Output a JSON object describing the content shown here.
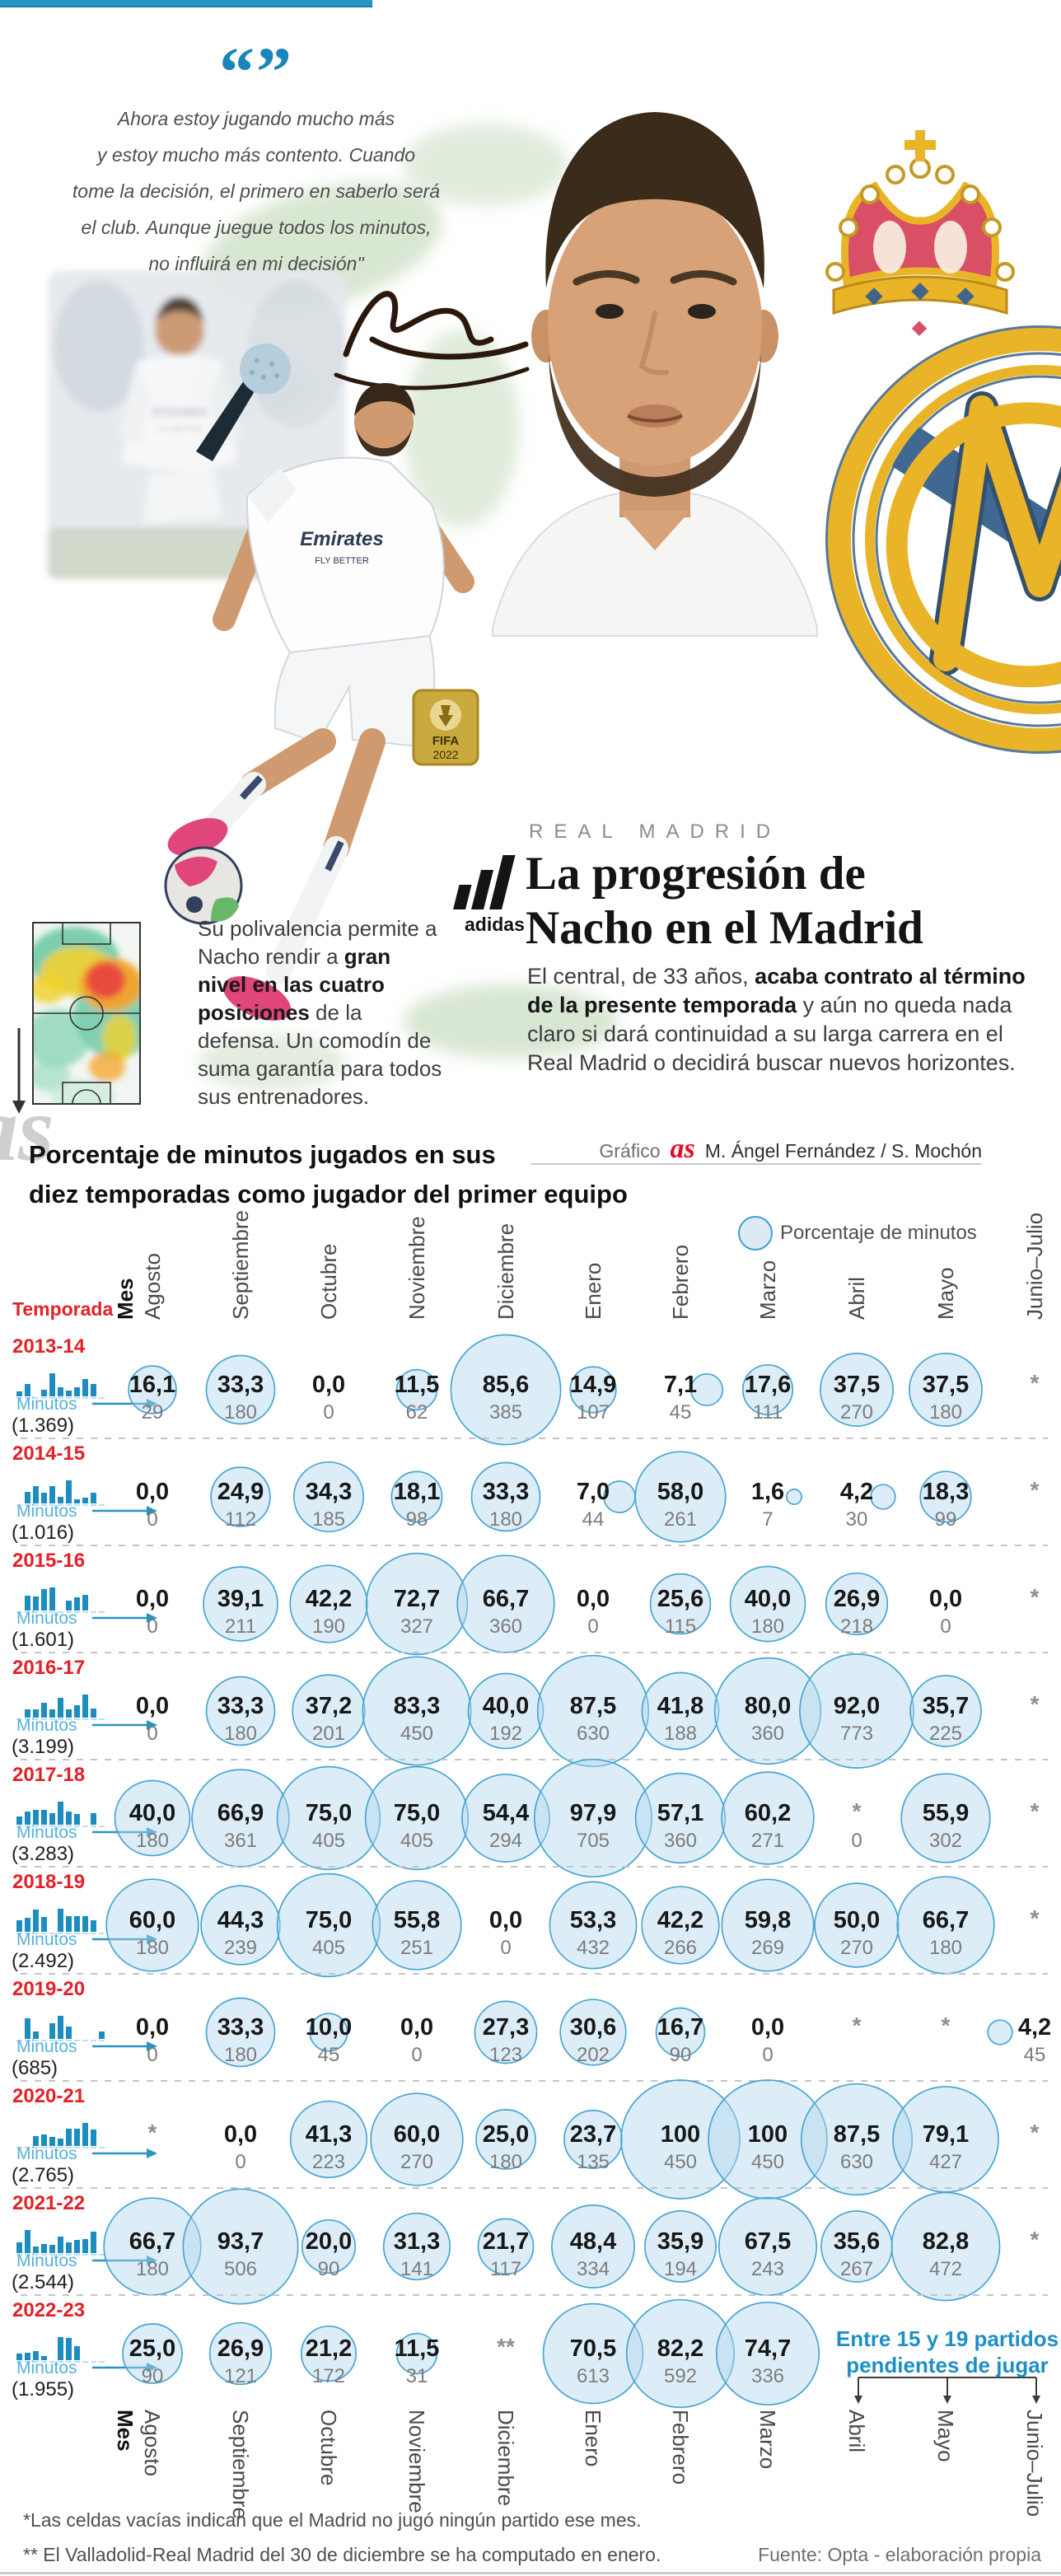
{
  "quote": {
    "glyphs": "“”",
    "lines": [
      "Ahora estoy jugando mucho más",
      "y estoy mucho más contento. Cuando",
      "tome la decisión, el primero en saberlo será",
      "el club. Aunque juegue todos los minutos,",
      "no influirá en mi decisión\""
    ]
  },
  "header": {
    "kicker": "REAL MADRID",
    "title_lines": [
      "La progresión de",
      "Nacho en el Madrid"
    ],
    "intro_segments": [
      {
        "text": "El central, de 33 años, ",
        "bold": false
      },
      {
        "text": "acaba contrato al término de la presente temporada",
        "bold": true
      },
      {
        "text": " y aún no queda nada claro si dará continuidad a su larga carrera en el Real Madrid o decidirá buscar nuevos horizontes.",
        "bold": false
      }
    ]
  },
  "heatmap_note_segments": [
    {
      "text": "Su polivalencia permite a Nacho rendir a ",
      "bold": false
    },
    {
      "text": "gran nivel en las cuatro posiciones",
      "bold": true
    },
    {
      "text": " de la defensa. Un comodín de suma garantía para todos sus entrenadores.",
      "bold": false
    }
  ],
  "section": {
    "title_lines": [
      "Porcentaje de minutos jugados en sus",
      "diez temporadas como jugador del primer equipo"
    ],
    "credit_label": "Gráfico",
    "credit_logo": "as",
    "credit_authors": "M. Ángel Fernández / S. Mochón",
    "legend_label": "Porcentaje de minutos"
  },
  "artwork": {
    "jersey_sponsor": "Emirates",
    "jersey_tagline": "FLY BETTER",
    "adidas_label": "adidas",
    "fifa_label": "FIFA",
    "fifa_year": "2022"
  },
  "chart_data": {
    "type": "bubble-matrix",
    "title": "Porcentaje de minutos jugados en sus diez temporadas como jugador del primer equipo",
    "row_axis_label": "Temporada",
    "col_axis_label": "Mes",
    "legend": "Porcentaje de minutos",
    "unit_row_label": "Minutos",
    "columns": [
      "Agosto",
      "Septiembre",
      "Octubre",
      "Noviembre",
      "Diciembre",
      "Enero",
      "Febrero",
      "Marzo",
      "Abril",
      "Mayo",
      "Junio–Julio"
    ],
    "rows": [
      {
        "season": "2013-14",
        "total_label": "(1.369)",
        "pct": [
          16.1,
          33.3,
          0,
          11.5,
          85.6,
          14.9,
          7.1,
          17.6,
          37.5,
          37.5,
          null
        ],
        "minutes": [
          29,
          180,
          0,
          62,
          385,
          107,
          45,
          111,
          270,
          180,
          null
        ],
        "notes": [
          null,
          null,
          null,
          null,
          null,
          null,
          null,
          null,
          null,
          null,
          "*"
        ]
      },
      {
        "season": "2014-15",
        "total_label": "(1.016)",
        "pct": [
          0,
          24.9,
          34.3,
          18.1,
          33.3,
          7,
          58,
          1.6,
          4.2,
          18.3,
          null
        ],
        "minutes": [
          0,
          112,
          185,
          98,
          180,
          44,
          261,
          7,
          30,
          99,
          null
        ],
        "notes": [
          null,
          null,
          null,
          null,
          null,
          null,
          null,
          null,
          null,
          null,
          "*"
        ]
      },
      {
        "season": "2015-16",
        "total_label": "(1.601)",
        "pct": [
          0,
          39.1,
          42.2,
          72.7,
          66.7,
          0,
          25.6,
          40,
          26.9,
          0,
          null
        ],
        "minutes": [
          0,
          211,
          190,
          327,
          360,
          0,
          115,
          180,
          218,
          0,
          null
        ],
        "notes": [
          null,
          null,
          null,
          null,
          null,
          null,
          null,
          null,
          null,
          null,
          "*"
        ]
      },
      {
        "season": "2016-17",
        "total_label": "(3.199)",
        "pct": [
          0,
          33.3,
          37.2,
          83.3,
          40,
          87.5,
          41.8,
          80,
          92,
          35.7,
          null
        ],
        "minutes": [
          0,
          180,
          201,
          450,
          192,
          630,
          188,
          360,
          773,
          225,
          null
        ],
        "notes": [
          null,
          null,
          null,
          null,
          null,
          null,
          null,
          null,
          null,
          null,
          "*"
        ]
      },
      {
        "season": "2017-18",
        "total_label": "(3.283)",
        "pct": [
          40,
          66.9,
          75,
          75,
          54.4,
          97.9,
          57.1,
          60.2,
          null,
          55.9,
          null
        ],
        "minutes": [
          180,
          361,
          405,
          405,
          294,
          705,
          360,
          271,
          0,
          302,
          null
        ],
        "notes": [
          null,
          null,
          null,
          null,
          null,
          null,
          null,
          null,
          "*",
          null,
          "*"
        ]
      },
      {
        "season": "2018-19",
        "total_label": "(2.492)",
        "pct": [
          60,
          44.3,
          75,
          55.8,
          0,
          53.3,
          42.2,
          59.8,
          50,
          66.7,
          null
        ],
        "minutes": [
          180,
          239,
          405,
          251,
          0,
          432,
          266,
          269,
          270,
          180,
          null
        ],
        "notes": [
          null,
          null,
          null,
          null,
          null,
          null,
          null,
          null,
          null,
          null,
          "*"
        ]
      },
      {
        "season": "2019-20",
        "total_label": "(685)",
        "pct": [
          0,
          33.3,
          10,
          0,
          27.3,
          30.6,
          16.7,
          0,
          null,
          null,
          4.2
        ],
        "minutes": [
          0,
          180,
          45,
          0,
          123,
          202,
          90,
          0,
          null,
          null,
          45
        ],
        "notes": [
          null,
          null,
          null,
          null,
          null,
          null,
          null,
          null,
          "*",
          "*",
          null
        ]
      },
      {
        "season": "2020-21",
        "total_label": "(2.765)",
        "pct": [
          null,
          0,
          41.3,
          60,
          25,
          23.7,
          100,
          100,
          87.5,
          79.1,
          null
        ],
        "minutes": [
          null,
          0,
          223,
          270,
          180,
          135,
          450,
          450,
          630,
          427,
          null
        ],
        "notes": [
          "*",
          null,
          null,
          null,
          null,
          null,
          null,
          null,
          null,
          null,
          "*"
        ]
      },
      {
        "season": "2021-22",
        "total_label": "(2.544)",
        "pct": [
          66.7,
          93.7,
          20,
          31.3,
          21.7,
          48.4,
          35.9,
          67.5,
          35.6,
          82.8,
          null
        ],
        "minutes": [
          180,
          506,
          90,
          141,
          117,
          334,
          194,
          243,
          267,
          472,
          null
        ],
        "notes": [
          null,
          null,
          null,
          null,
          null,
          null,
          null,
          null,
          null,
          null,
          "*"
        ]
      },
      {
        "season": "2022-23",
        "total_label": "(1.955)",
        "pct": [
          25,
          26.9,
          21.2,
          11.5,
          null,
          70.5,
          82.2,
          74.7,
          null,
          null,
          null
        ],
        "minutes": [
          90,
          121,
          172,
          31,
          null,
          613,
          592,
          336,
          null,
          null,
          null
        ],
        "notes": [
          null,
          null,
          null,
          null,
          "**",
          null,
          null,
          null,
          null,
          null,
          null
        ]
      }
    ],
    "pending_note_lines": [
      "Entre 15 y 19 partidos",
      "pendientes de jugar"
    ],
    "pending_note_columns": [
      "Abril",
      "Mayo",
      "Junio–Julio"
    ],
    "footnotes": [
      "*Las celdas vacías indican que el Madrid no jugó ningún partido ese mes.",
      "** El Valladolid-Real Madrid del 30 de diciembre se ha computado en enero."
    ],
    "source": "Fuente: Opta - elaboración propia"
  },
  "colors": {
    "accent_blue": "#1e8fc6",
    "bubble_stroke": "#49a5d2",
    "bubble_fill": "#cfe4f2",
    "season_red": "#e32127",
    "as_red": "#e30b23"
  }
}
